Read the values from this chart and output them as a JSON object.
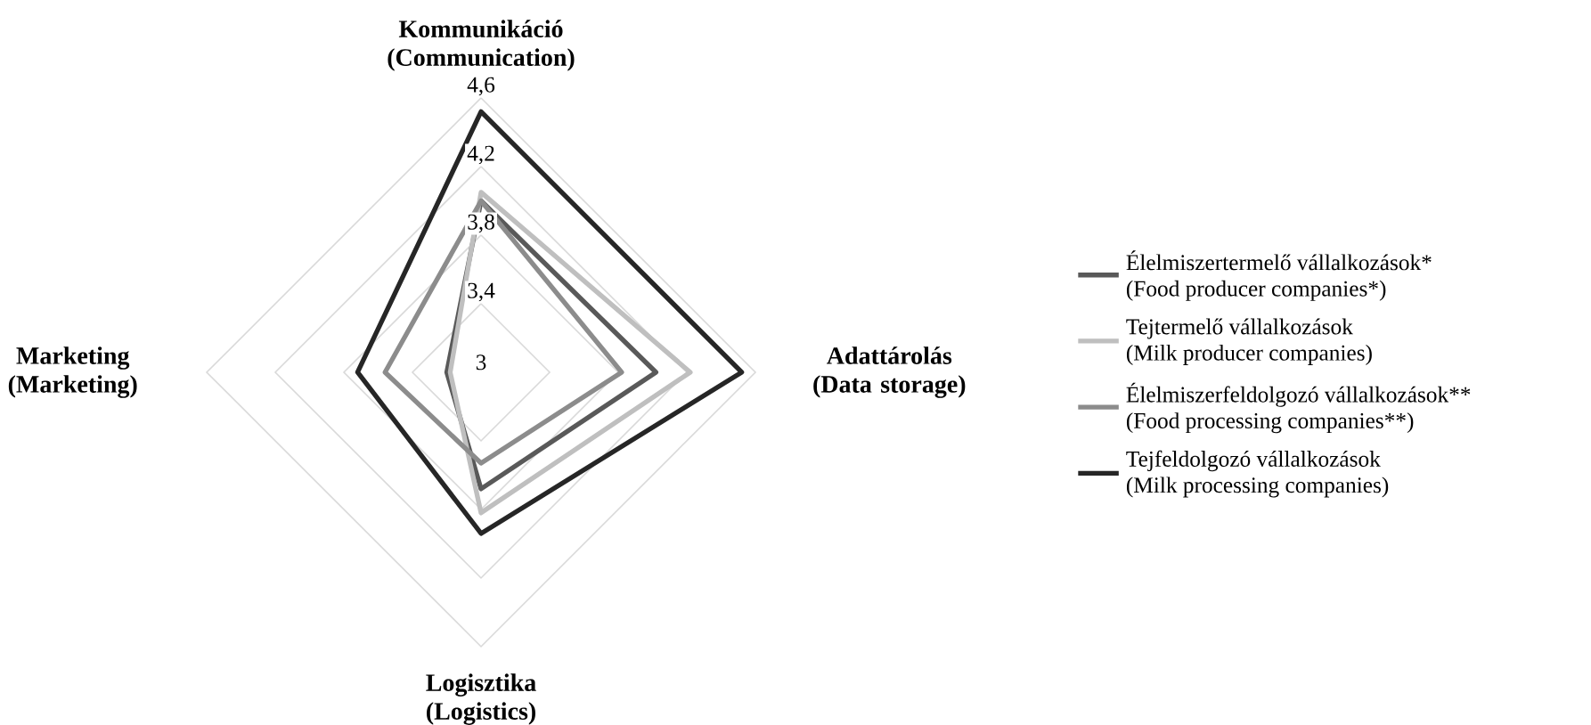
{
  "chart_data": {
    "type": "radar",
    "categories": [
      "Kommunikáció (Communication)",
      "Adattárolás (Data storage)",
      "Logisztika (Logistics)",
      "Marketing (Marketing)"
    ],
    "series": [
      {
        "name": "Élelmiszertermelő vállalkozások* (Food producer companies*)",
        "color": "#595959",
        "values": [
          4.0,
          4.02,
          3.68,
          3.2
        ]
      },
      {
        "name": "Tejtermelő vállalkozások (Milk producer companies)",
        "color": "#bfbfbf",
        "values": [
          4.05,
          4.22,
          3.82,
          3.18
        ]
      },
      {
        "name": "Élelmiszerfeldolgozó vállalkozások** (Food processing companies**)",
        "color": "#8c8c8c",
        "values": [
          4.0,
          3.82,
          3.53,
          3.56
        ]
      },
      {
        "name": "Tejfeldolgozó vállalkozások (Milk processing companies)",
        "color": "#262626",
        "values": [
          4.52,
          4.52,
          3.94,
          3.72
        ]
      }
    ],
    "ylim": [
      3,
      4.6
    ],
    "yticks": [
      {
        "value": 3,
        "label": "3"
      },
      {
        "value": 3.4,
        "label": "3,4"
      },
      {
        "value": 3.8,
        "label": "3,8"
      },
      {
        "value": 4.2,
        "label": "4,2"
      },
      {
        "value": 4.6,
        "label": "4,6"
      }
    ],
    "grid": true,
    "legend": "right"
  }
}
